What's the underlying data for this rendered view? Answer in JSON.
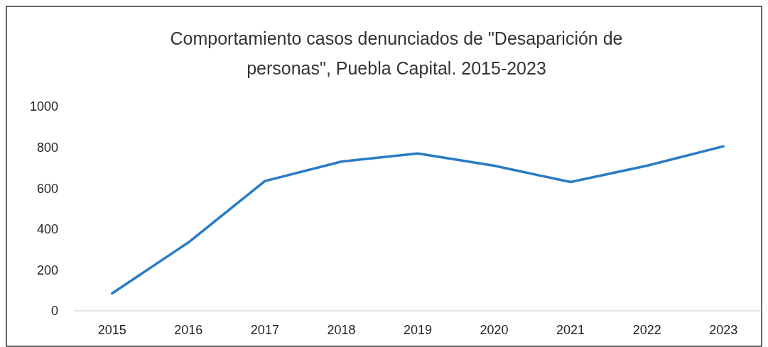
{
  "chart_data": {
    "type": "line",
    "title": "Comportamiento casos denunciados de \"Desaparición de personas\", Puebla Capital. 2015-2023",
    "categories": [
      "2015",
      "2016",
      "2017",
      "2018",
      "2019",
      "2020",
      "2021",
      "2022",
      "2023"
    ],
    "series": [
      {
        "color": "#2a7bc4",
        "values": [
          85,
          335,
          635,
          730,
          770,
          710,
          630,
          710,
          805
        ]
      }
    ],
    "ylim": [
      0,
      1000
    ],
    "yticks": [
      0,
      200,
      400,
      600,
      800,
      1000
    ],
    "marker": "none",
    "line_style": "solid"
  }
}
